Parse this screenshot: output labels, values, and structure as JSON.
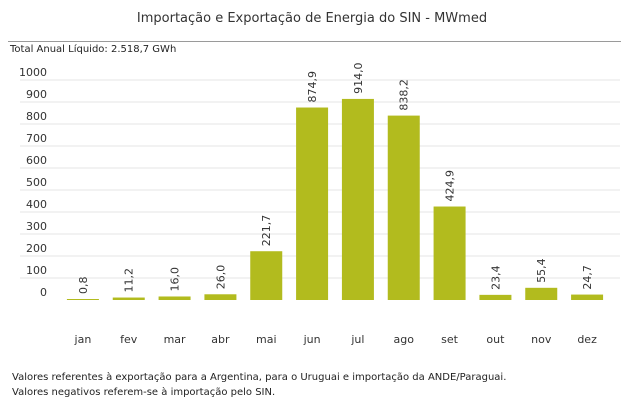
{
  "header": {
    "title": "Importação e Exportação de Energia do SIN - MWmed",
    "total_label": "Total Anual Líquido: 2.518,7 GWh"
  },
  "footnotes": {
    "line1": "Valores referentes à exportação para a Argentina, para o Uruguai e importação da ANDE/Paraguai.",
    "line2": "Valores negativos referem-se à importação pelo SIN."
  },
  "colors": {
    "bar": "#b2bb1e",
    "grid": "#e6e6e6",
    "text": "#333333"
  },
  "chart_data": {
    "type": "bar",
    "title": "Importação e Exportação de Energia do SIN - MWmed",
    "categories": [
      "jan",
      "fev",
      "mar",
      "abr",
      "mai",
      "jun",
      "jul",
      "ago",
      "set",
      "out",
      "nov",
      "dez"
    ],
    "values": [
      0.8,
      11.2,
      16.0,
      26.0,
      221.7,
      874.9,
      914.0,
      838.2,
      424.9,
      23.4,
      55.4,
      24.7
    ],
    "value_labels": [
      "0,8",
      "11,2",
      "16,0",
      "26,0",
      "221,7",
      "874,9",
      "914,0",
      "838,2",
      "424,9",
      "23,4",
      "55,4",
      "24,7"
    ],
    "y_ticks": [
      "0",
      "100",
      "200",
      "300",
      "400",
      "500",
      "600",
      "700",
      "800",
      "900",
      "1000"
    ],
    "ylim": [
      0,
      1000
    ],
    "grid": true,
    "legend": "none",
    "xlabel": "",
    "ylabel": ""
  }
}
